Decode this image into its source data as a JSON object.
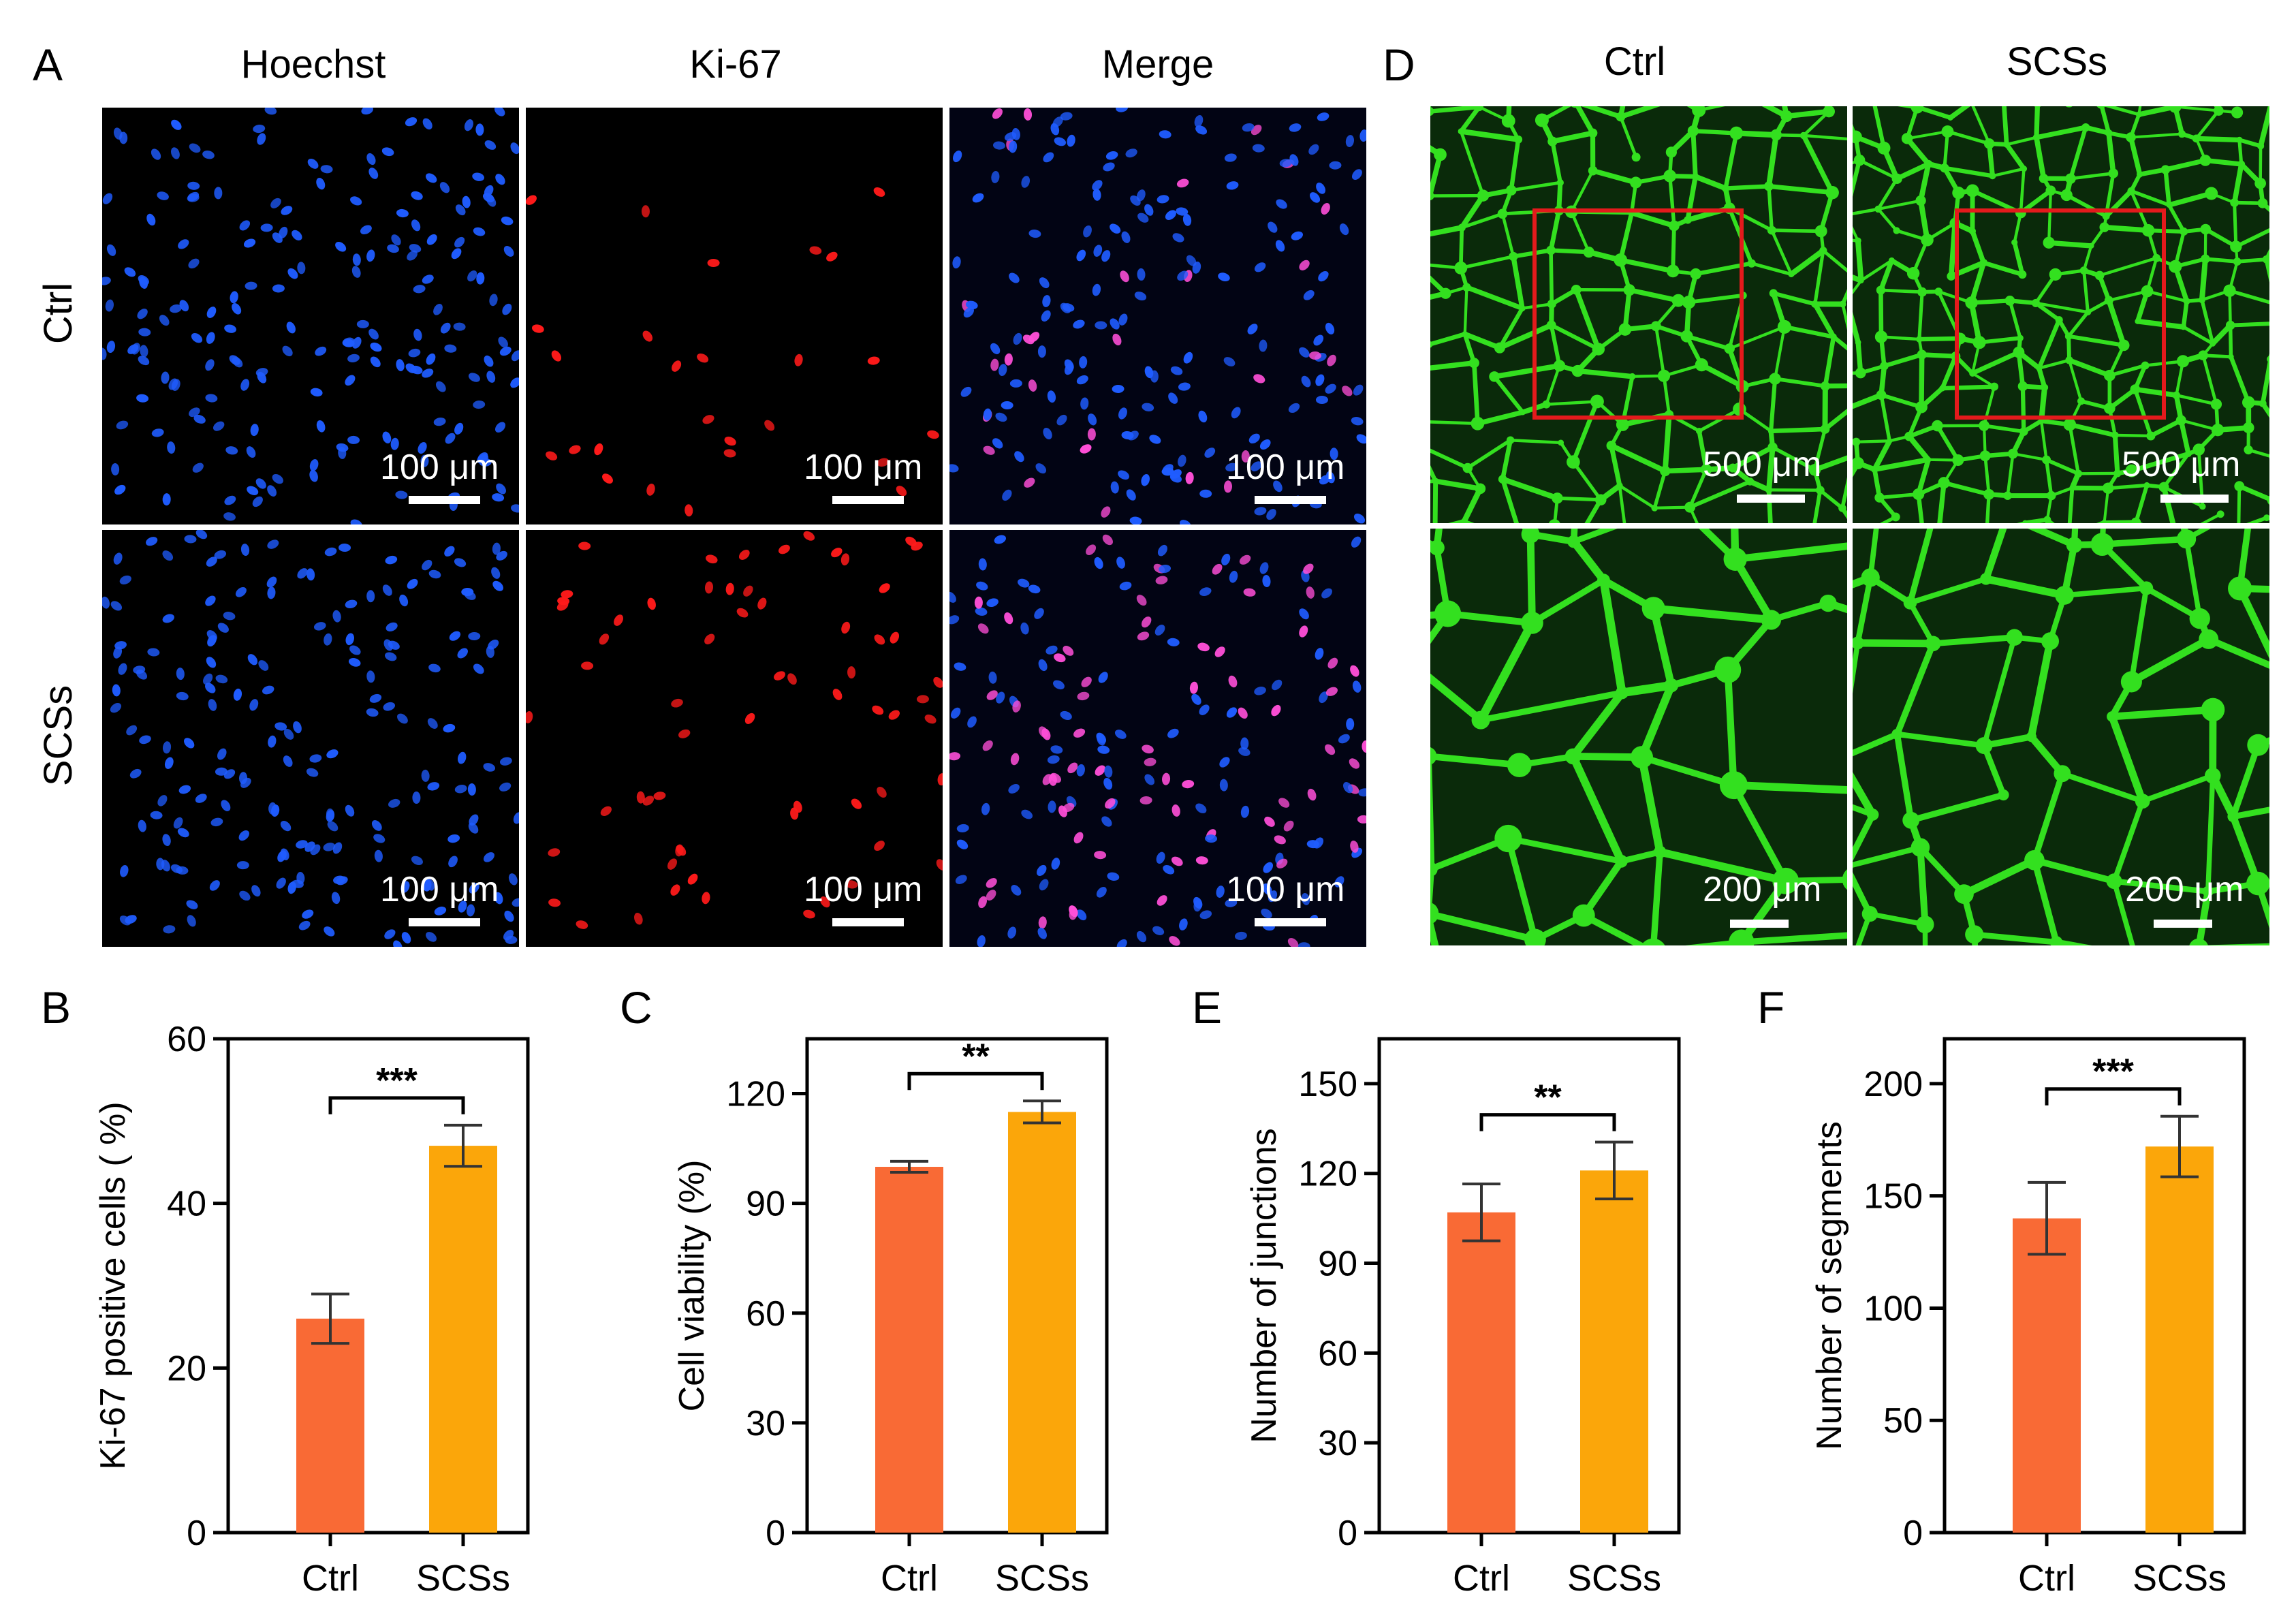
{
  "panel_a": {
    "letter": "A",
    "columns": [
      "Hoechst",
      "Ki-67",
      "Merge"
    ],
    "rows": [
      "Ctrl",
      "SCSs"
    ],
    "scale_label": "100 μm",
    "colors": {
      "nuclei": "#1f5cff",
      "ki67": "#ff1a1a",
      "merge_positive": "#ff4fd8"
    }
  },
  "panel_d": {
    "letter": "D",
    "columns": [
      "Ctrl",
      "SCSs"
    ],
    "scale_labels": [
      "500 μm",
      "200 μm"
    ],
    "colors": {
      "network": "#33e01f",
      "roi": "#e41a1c"
    }
  },
  "chart_data": [
    {
      "panel": "B",
      "type": "bar",
      "categories": [
        "Ctrl",
        "SCSs"
      ],
      "values": [
        26,
        47
      ],
      "errors": [
        3,
        2.5
      ],
      "ylabel": "Ki-67 positive cells ( %)",
      "ylim": [
        0,
        60
      ],
      "yticks": [
        0,
        20,
        40,
        60
      ],
      "significance": "***",
      "colors": [
        "#f96a35",
        "#fba60a"
      ]
    },
    {
      "panel": "C",
      "type": "bar",
      "categories": [
        "Ctrl",
        "SCSs"
      ],
      "values": [
        100,
        115
      ],
      "errors": [
        1.5,
        3
      ],
      "ylabel": "Cell viability (%)",
      "ylim": [
        0,
        135
      ],
      "yticks": [
        0,
        30,
        60,
        90,
        120
      ],
      "significance": "**",
      "colors": [
        "#f96a35",
        "#fba60a"
      ]
    },
    {
      "panel": "E",
      "type": "bar",
      "categories": [
        "Ctrl",
        "SCSs"
      ],
      "values": [
        107,
        121
      ],
      "errors": [
        9.5,
        9.5
      ],
      "ylabel": "Number of junctions",
      "ylim": [
        0,
        165
      ],
      "yticks": [
        0,
        30,
        60,
        90,
        120,
        150
      ],
      "significance": "**",
      "colors": [
        "#f96a35",
        "#fba60a"
      ]
    },
    {
      "panel": "F",
      "type": "bar",
      "categories": [
        "Ctrl",
        "SCSs"
      ],
      "values": [
        140,
        172
      ],
      "errors": [
        16,
        13.5
      ],
      "ylabel": "Number of  segments",
      "ylim": [
        0,
        220
      ],
      "yticks": [
        0,
        50,
        100,
        150,
        200
      ],
      "significance": "***",
      "colors": [
        "#f96a35",
        "#fba60a"
      ]
    }
  ]
}
